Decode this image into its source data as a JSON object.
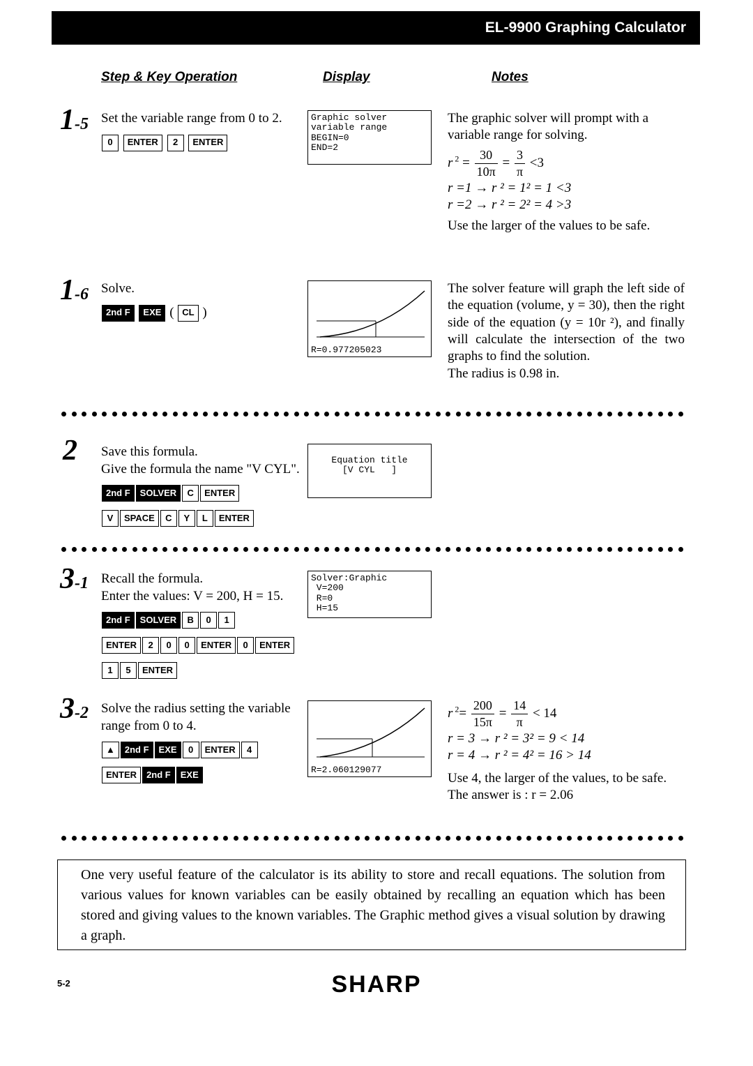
{
  "header": {
    "title": "EL-9900 Graphing Calculator",
    "col_step": "Step & Key Operation",
    "col_display": "Display",
    "col_notes": "Notes"
  },
  "steps": {
    "s15": {
      "num_big": "1",
      "num_sub": "-5",
      "op_text": "Set the variable range from 0 to 2.",
      "keys1": [
        "0",
        "ENTER",
        "2",
        "ENTER"
      ],
      "display": "Graphic solver\nvariable range\nBEGIN=0\nEND=2",
      "notes_a": "The graphic solver will prompt with a variable range for solving.",
      "math1_lhs_var": "r",
      "math1_eq": "=",
      "math1_f1num": "30",
      "math1_f1den": "10π",
      "math1_f2num": "3",
      "math1_f2den": "π",
      "math1_tail": " <3",
      "math2": "r =1 → r ² = 1² = 1 <3",
      "math3": "r =2 → r ² = 2² = 4 >3",
      "notes_b": "Use the larger of the values to be safe."
    },
    "s16": {
      "num_big": "1",
      "num_sub": "-6",
      "op_text": "Solve.",
      "keys1_inv": [
        "2nd F",
        "EXE"
      ],
      "keys1_paren1": "(",
      "keys1_mid": [
        "CL"
      ],
      "keys1_paren2": ")",
      "display_result": "R=0.977205023",
      "notes": "The solver feature will graph the left side of the equation (volume, y = 30), then the right side of the equation (y = 10r ²), and finally will calculate the intersection of the two graphs to find the solution.",
      "notes2": "The radius is 0.98 in."
    },
    "s2": {
      "num_big": "2",
      "op_text1": "Save this formula.",
      "op_text2": "Give the formula the name \"V CYL\".",
      "keysA": [
        [
          "2nd F",
          "inv"
        ],
        [
          "SOLVER",
          "inv"
        ],
        [
          "C",
          ""
        ],
        [
          "ENTER",
          ""
        ]
      ],
      "keysB": [
        [
          "V",
          ""
        ],
        [
          "SPACE",
          ""
        ],
        [
          "C",
          ""
        ],
        [
          "Y",
          ""
        ],
        [
          "L",
          ""
        ],
        [
          "ENTER",
          ""
        ]
      ],
      "display": "Equation title\n[V CYL   ]"
    },
    "s31": {
      "num_big": "3",
      "num_sub": "-1",
      "op_text1": "Recall the formula.",
      "op_text2": "Enter the values: V = 200, H = 15.",
      "keysA": [
        [
          "2nd F",
          "inv"
        ],
        [
          "SOLVER",
          "inv"
        ],
        [
          "B",
          ""
        ],
        [
          "0",
          ""
        ],
        [
          "1",
          ""
        ]
      ],
      "keysB": [
        [
          "ENTER",
          ""
        ],
        [
          "2",
          ""
        ],
        [
          "0",
          ""
        ],
        [
          "0",
          ""
        ],
        [
          "ENTER",
          ""
        ],
        [
          "0",
          ""
        ],
        [
          "ENTER",
          ""
        ]
      ],
      "keysC": [
        [
          "1",
          ""
        ],
        [
          "5",
          ""
        ],
        [
          "ENTER",
          ""
        ]
      ],
      "display": "Solver:Graphic\n V=200\n R=0\n H=15"
    },
    "s32": {
      "num_big": "3",
      "num_sub": "-2",
      "op_text": "Solve the radius setting the variable range from 0 to 4.",
      "keysA": [
        [
          "▲",
          ""
        ],
        [
          "2nd F",
          "inv"
        ],
        [
          "EXE",
          "inv"
        ],
        [
          "0",
          ""
        ],
        [
          "ENTER",
          ""
        ],
        [
          "4",
          ""
        ]
      ],
      "keysB": [
        [
          "ENTER",
          ""
        ],
        [
          "2nd F",
          "inv"
        ],
        [
          "EXE",
          "inv"
        ]
      ],
      "display_result": "R=2.060129077",
      "math1_var": "r",
      "math1_f1num": "200",
      "math1_f1den": "15π",
      "math1_f2num": "14",
      "math1_f2den": "π",
      "math1_tail": "< 14",
      "math2": "r  = 3 → r ² = 3² = 9  < 14",
      "math3": "r  = 4 → r ² = 4² = 16 > 14",
      "notes_b": "Use 4, the larger of the values, to be safe.",
      "notes_c": "The answer is : r  = 2.06"
    }
  },
  "footer_text": "One very useful feature of the calculator is its ability to store and recall equations. The solution from various values for known variables can be easily obtained by recalling an equation which has been stored and giving values to the known variables. The Graphic method gives a visual solution by drawing a graph.",
  "page_number": "5-2",
  "brand": "SHARP",
  "dot_count": 62
}
